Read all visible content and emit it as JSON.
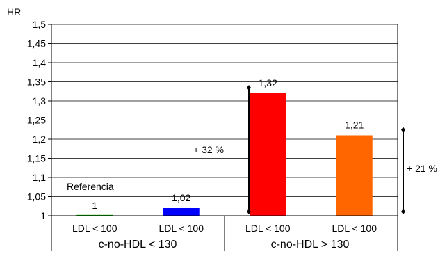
{
  "chart_data": {
    "type": "bar",
    "ylabel": "HR",
    "ylim": [
      1,
      1.5
    ],
    "yticks": [
      "1",
      "1,05",
      "1,1",
      "1,15",
      "1,2",
      "1,25",
      "1,3",
      "1,35",
      "1,4",
      "1,45",
      "1,5"
    ],
    "grid": true,
    "categories": [
      "LDL < 100",
      "LDL < 100",
      "LDL < 100",
      "LDL < 100"
    ],
    "group_labels": [
      "c-no-HDL < 130",
      "c-no-HDL > 130"
    ],
    "values": [
      1,
      1.02,
      1.32,
      1.21
    ],
    "value_labels": [
      "1",
      "1,02",
      "1,32",
      "1,21"
    ],
    "bar_colors": [
      "#00aa00",
      "#0000ff",
      "#ff0000",
      "#ff6600"
    ],
    "annotations": {
      "reference": "Referencia",
      "increase_32": "+ 32 %",
      "increase_21": "+ 21 %"
    },
    "increase_ranges": [
      [
        1,
        1.32
      ],
      [
        1,
        1.21
      ]
    ]
  }
}
